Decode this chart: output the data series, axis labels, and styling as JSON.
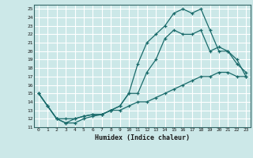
{
  "xlabel": "Humidex (Indice chaleur)",
  "bg_color": "#cce8e8",
  "grid_color": "#ffffff",
  "line_color": "#1a6b6b",
  "xlim": [
    -0.5,
    23.5
  ],
  "ylim": [
    11,
    25.5
  ],
  "x_ticks": [
    0,
    1,
    2,
    3,
    4,
    5,
    6,
    7,
    8,
    9,
    10,
    11,
    12,
    13,
    14,
    15,
    16,
    17,
    18,
    19,
    20,
    21,
    22,
    23
  ],
  "y_ticks": [
    11,
    12,
    13,
    14,
    15,
    16,
    17,
    18,
    19,
    20,
    21,
    22,
    23,
    24,
    25
  ],
  "line1_x": [
    0,
    1,
    2,
    3,
    4,
    5,
    6,
    7,
    8,
    9,
    10,
    11,
    12,
    13,
    14,
    15,
    16,
    17,
    18,
    19,
    20,
    21,
    22,
    23
  ],
  "line1_y": [
    15.0,
    13.5,
    12.0,
    11.5,
    11.5,
    12.0,
    12.3,
    12.5,
    13.0,
    13.5,
    15.0,
    18.5,
    21.0,
    22.0,
    23.0,
    24.5,
    25.0,
    24.5,
    25.0,
    22.5,
    20.0,
    20.0,
    18.5,
    17.5
  ],
  "line2_x": [
    0,
    1,
    2,
    3,
    4,
    5,
    6,
    7,
    8,
    9,
    10,
    11,
    12,
    13,
    14,
    15,
    16,
    17,
    18,
    19,
    20,
    21,
    22,
    23
  ],
  "line2_y": [
    15.0,
    13.5,
    12.0,
    11.5,
    12.0,
    12.3,
    12.5,
    12.5,
    13.0,
    13.5,
    15.0,
    15.0,
    17.5,
    19.0,
    21.5,
    22.5,
    22.0,
    22.0,
    22.5,
    20.0,
    20.5,
    20.0,
    19.0,
    17.0
  ],
  "line3_x": [
    0,
    1,
    2,
    3,
    4,
    5,
    6,
    7,
    8,
    9,
    10,
    11,
    12,
    13,
    14,
    15,
    16,
    17,
    18,
    19,
    20,
    21,
    22,
    23
  ],
  "line3_y": [
    15.0,
    13.5,
    12.0,
    12.0,
    12.0,
    12.3,
    12.5,
    12.5,
    13.0,
    13.0,
    13.5,
    14.0,
    14.0,
    14.5,
    15.0,
    15.5,
    16.0,
    16.5,
    17.0,
    17.0,
    17.5,
    17.5,
    17.0,
    17.0
  ]
}
